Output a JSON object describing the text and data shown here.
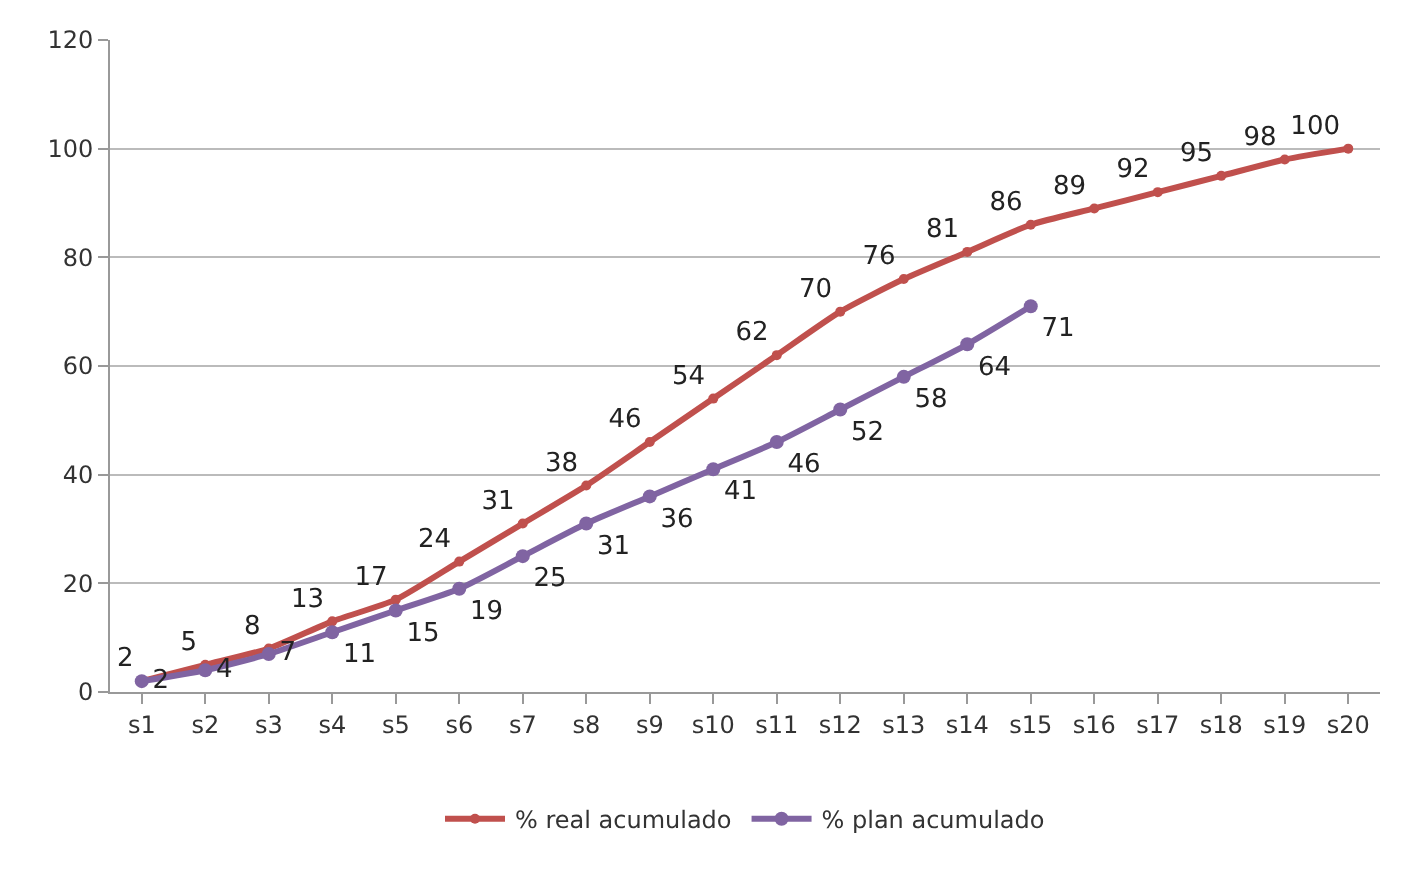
{
  "chart_data": {
    "type": "line",
    "categories": [
      "s1",
      "s2",
      "s3",
      "s4",
      "s5",
      "s6",
      "s7",
      "s8",
      "s9",
      "s10",
      "s11",
      "s12",
      "s13",
      "s14",
      "s15",
      "s16",
      "s17",
      "s18",
      "s19",
      "s20"
    ],
    "series": [
      {
        "name": "% real acumulado",
        "color": "#c0504d",
        "values": [
          2,
          5,
          8,
          13,
          17,
          24,
          31,
          38,
          46,
          54,
          62,
          70,
          76,
          81,
          86,
          89,
          92,
          95,
          98,
          100
        ]
      },
      {
        "name": "% plan acumulado",
        "color": "#8064a2",
        "values": [
          2,
          4,
          7,
          11,
          15,
          19,
          25,
          31,
          36,
          41,
          46,
          52,
          58,
          64,
          71,
          null,
          null,
          null,
          null,
          null
        ]
      }
    ],
    "ylim": [
      0,
      120
    ],
    "yticks": [
      0,
      20,
      40,
      60,
      80,
      100,
      120
    ],
    "grid": "y",
    "legend": "bottom",
    "marker": "circle",
    "line_style": "solid",
    "data_labels": true
  }
}
